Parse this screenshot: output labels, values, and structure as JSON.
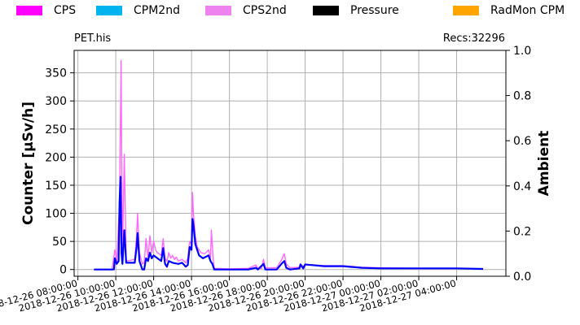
{
  "legend": [
    {
      "label": "CPS",
      "color": "#ff00ff"
    },
    {
      "label": "CPM2nd",
      "color": "#00b4f0"
    },
    {
      "label": "CPS2nd",
      "color": "#ee82ee"
    },
    {
      "label": "Pressure",
      "color": "#000000"
    },
    {
      "label": "RadMon CPM",
      "color": "#ffa500"
    }
  ],
  "header": {
    "file": "PET.his",
    "records": "Recs:32296"
  },
  "chart_data": {
    "type": "line",
    "ylabel_left": "Counter  [µSv/h]",
    "ylabel_right": "Ambient",
    "ylim_left": [
      -12,
      390
    ],
    "ylim_right": [
      0.0,
      1.0
    ],
    "yticks_left": [
      0,
      50,
      100,
      150,
      200,
      250,
      300,
      350
    ],
    "yticks_right": [
      "0.0",
      "0.2",
      "0.4",
      "0.6",
      "0.8",
      "1.0"
    ],
    "xlim_hours": [
      7.8,
      30.6
    ],
    "x_origin": "2018-12-26 00:00:00",
    "xticks": [
      {
        "label": "2018-12-26  08:00:00",
        "hour": 8
      },
      {
        "label": "2018-12-26  10:00:00",
        "hour": 10
      },
      {
        "label": "2018-12-26  12:00:00",
        "hour": 12
      },
      {
        "label": "2018-12-26  14:00:00",
        "hour": 14
      },
      {
        "label": "2018-12-26  16:00:00",
        "hour": 16
      },
      {
        "label": "2018-12-26  18:00:00",
        "hour": 18
      },
      {
        "label": "2018-12-26  20:00:00",
        "hour": 20
      },
      {
        "label": "2018-12-26  22:00:00",
        "hour": 22
      },
      {
        "label": "2018-12-27  00:00:00",
        "hour": 24
      },
      {
        "label": "2018-12-27  02:00:00",
        "hour": 26
      },
      {
        "label": "2018-12-27  04:00:00",
        "hour": 28
      }
    ],
    "grid": true,
    "series": [
      {
        "name": "CPS2nd",
        "color": "#ff66ff",
        "points": [
          [
            8.85,
            0
          ],
          [
            9.8,
            0
          ],
          [
            9.95,
            35
          ],
          [
            10.05,
            15
          ],
          [
            10.2,
            120
          ],
          [
            10.28,
            372
          ],
          [
            10.35,
            20
          ],
          [
            10.45,
            205
          ],
          [
            10.55,
            15
          ],
          [
            11.0,
            18
          ],
          [
            11.1,
            60
          ],
          [
            11.15,
            100
          ],
          [
            11.25,
            30
          ],
          [
            11.4,
            10
          ],
          [
            11.5,
            12
          ],
          [
            11.6,
            55
          ],
          [
            11.7,
            20
          ],
          [
            11.8,
            60
          ],
          [
            11.9,
            30
          ],
          [
            12.0,
            50
          ],
          [
            12.1,
            35
          ],
          [
            12.2,
            30
          ],
          [
            12.4,
            25
          ],
          [
            12.5,
            55
          ],
          [
            12.6,
            20
          ],
          [
            12.7,
            15
          ],
          [
            12.8,
            30
          ],
          [
            12.9,
            20
          ],
          [
            13.0,
            25
          ],
          [
            13.1,
            18
          ],
          [
            13.2,
            22
          ],
          [
            13.3,
            15
          ],
          [
            13.5,
            18
          ],
          [
            13.7,
            12
          ],
          [
            13.8,
            20
          ],
          [
            13.9,
            50
          ],
          [
            14.0,
            45
          ],
          [
            14.05,
            137
          ],
          [
            14.1,
            100
          ],
          [
            14.2,
            60
          ],
          [
            14.3,
            40
          ],
          [
            14.5,
            30
          ],
          [
            14.7,
            28
          ],
          [
            14.9,
            35
          ],
          [
            15.0,
            20
          ],
          [
            15.05,
            70
          ],
          [
            15.15,
            15
          ],
          [
            15.2,
            2
          ],
          [
            16.0,
            1
          ],
          [
            17.0,
            2
          ],
          [
            17.4,
            8
          ],
          [
            17.5,
            2
          ],
          [
            17.7,
            2
          ],
          [
            17.8,
            18
          ],
          [
            17.9,
            3
          ],
          [
            18.5,
            3
          ],
          [
            18.8,
            20
          ],
          [
            18.85,
            25
          ],
          [
            18.9,
            28
          ],
          [
            19.0,
            10
          ],
          [
            19.2,
            3
          ],
          [
            19.7,
            4
          ],
          [
            19.75,
            10
          ],
          [
            19.9,
            5
          ],
          [
            20.0,
            9
          ],
          [
            21.0,
            7
          ],
          [
            22.0,
            7
          ],
          [
            23.0,
            4
          ],
          [
            24.0,
            3
          ],
          [
            26.0,
            2
          ],
          [
            28.0,
            2
          ],
          [
            29.4,
            1
          ]
        ]
      },
      {
        "name": "CPS",
        "color": "#0000ff",
        "points": [
          [
            8.85,
            0
          ],
          [
            9.9,
            0
          ],
          [
            9.95,
            20
          ],
          [
            10.05,
            10
          ],
          [
            10.15,
            15
          ],
          [
            10.2,
            120
          ],
          [
            10.25,
            165
          ],
          [
            10.3,
            30
          ],
          [
            10.35,
            10
          ],
          [
            10.45,
            70
          ],
          [
            10.55,
            12
          ],
          [
            11.0,
            12
          ],
          [
            11.1,
            40
          ],
          [
            11.15,
            65
          ],
          [
            11.25,
            15
          ],
          [
            11.4,
            0
          ],
          [
            11.5,
            0
          ],
          [
            11.6,
            20
          ],
          [
            11.7,
            15
          ],
          [
            11.8,
            30
          ],
          [
            11.9,
            20
          ],
          [
            12.0,
            25
          ],
          [
            12.2,
            20
          ],
          [
            12.4,
            15
          ],
          [
            12.5,
            38
          ],
          [
            12.6,
            10
          ],
          [
            12.7,
            5
          ],
          [
            12.8,
            15
          ],
          [
            13.0,
            12
          ],
          [
            13.3,
            10
          ],
          [
            13.5,
            12
          ],
          [
            13.7,
            5
          ],
          [
            13.8,
            8
          ],
          [
            13.9,
            40
          ],
          [
            14.0,
            35
          ],
          [
            14.05,
            90
          ],
          [
            14.1,
            80
          ],
          [
            14.2,
            45
          ],
          [
            14.4,
            25
          ],
          [
            14.6,
            20
          ],
          [
            14.9,
            25
          ],
          [
            15.0,
            15
          ],
          [
            15.1,
            10
          ],
          [
            15.2,
            0
          ],
          [
            16.0,
            0
          ],
          [
            17.0,
            0
          ],
          [
            17.4,
            3
          ],
          [
            17.5,
            0
          ],
          [
            17.8,
            10
          ],
          [
            17.9,
            0
          ],
          [
            18.5,
            0
          ],
          [
            18.8,
            12
          ],
          [
            18.9,
            15
          ],
          [
            19.0,
            3
          ],
          [
            19.2,
            0
          ],
          [
            19.7,
            2
          ],
          [
            19.75,
            9
          ],
          [
            19.9,
            2
          ],
          [
            20.0,
            9
          ],
          [
            21.0,
            6
          ],
          [
            22.0,
            6
          ],
          [
            23.0,
            3
          ],
          [
            24.0,
            2
          ],
          [
            26.0,
            2
          ],
          [
            28.0,
            2
          ],
          [
            29.4,
            1
          ]
        ]
      }
    ]
  }
}
